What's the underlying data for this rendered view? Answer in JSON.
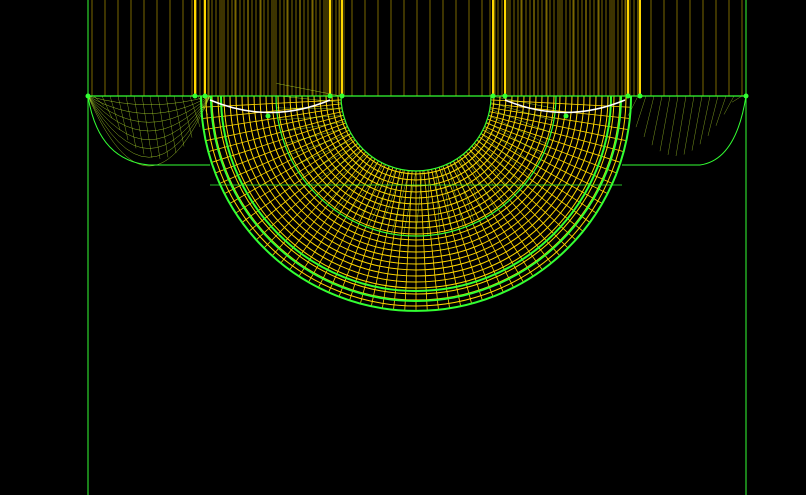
{
  "viewport": {
    "background": "#000000",
    "colors": {
      "boundary": "#33ff33",
      "mesh": "#ffd700",
      "mesh_dense": "#ffcc00",
      "mesh_fine": "#ccff33",
      "highlight": "#ffffff",
      "node": "#33ff33"
    }
  }
}
